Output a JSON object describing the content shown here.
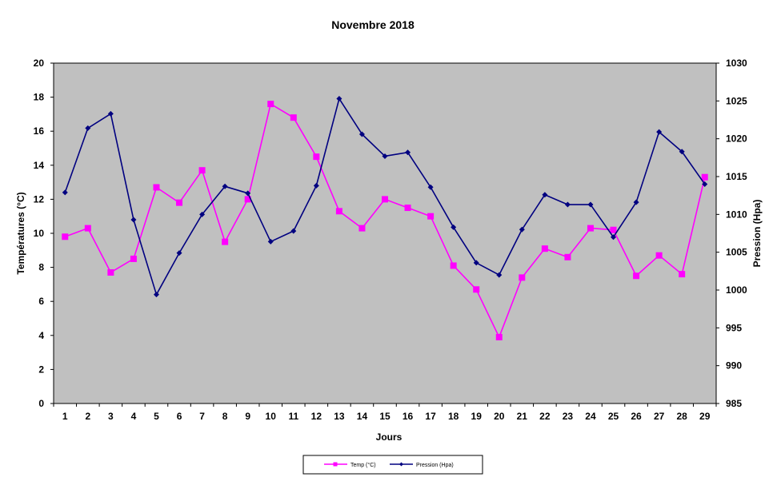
{
  "chart_data": {
    "type": "line",
    "title": "Novembre 2018",
    "xlabel": "Jours",
    "ylabel": "Températures (°C)",
    "y2label": "Pression (Hpa)",
    "x": [
      1,
      2,
      3,
      4,
      5,
      6,
      7,
      8,
      9,
      10,
      11,
      12,
      13,
      14,
      15,
      16,
      17,
      18,
      19,
      20,
      21,
      22,
      23,
      24,
      25,
      26,
      27,
      28,
      29
    ],
    "ylim": [
      0,
      20
    ],
    "y2lim": [
      985,
      1030
    ],
    "yticks": [
      0,
      2,
      4,
      6,
      8,
      10,
      12,
      14,
      16,
      18,
      20
    ],
    "y2ticks": [
      985,
      990,
      995,
      1000,
      1005,
      1010,
      1015,
      1020,
      1025,
      1030
    ],
    "grid": false,
    "legend_position": "bottom",
    "plot_background": "#c0c0c0",
    "series": [
      {
        "name": "Temp (°C)",
        "axis": "left",
        "color": "#ff00ff",
        "marker": "square",
        "values": [
          9.8,
          10.3,
          7.7,
          8.5,
          12.7,
          11.8,
          13.7,
          9.5,
          12.0,
          17.6,
          16.8,
          14.5,
          11.3,
          10.3,
          12.0,
          11.5,
          11.0,
          8.1,
          6.7,
          3.9,
          7.4,
          9.1,
          8.6,
          10.3,
          10.2,
          7.5,
          8.7,
          7.6,
          13.3
        ]
      },
      {
        "name": "Pression (Hpa)",
        "axis": "right",
        "color": "#000080",
        "marker": "diamond",
        "values": [
          1012.9,
          1021.4,
          1023.3,
          1009.3,
          999.4,
          1004.9,
          1010.0,
          1013.7,
          1012.8,
          1006.4,
          1007.8,
          1013.8,
          1025.3,
          1020.6,
          1017.7,
          1018.2,
          1013.6,
          1008.3,
          1003.6,
          1002.0,
          1008.0,
          1012.6,
          1011.3,
          1011.3,
          1007.0,
          1011.6,
          1020.9,
          1018.3,
          1014.0
        ]
      }
    ]
  }
}
